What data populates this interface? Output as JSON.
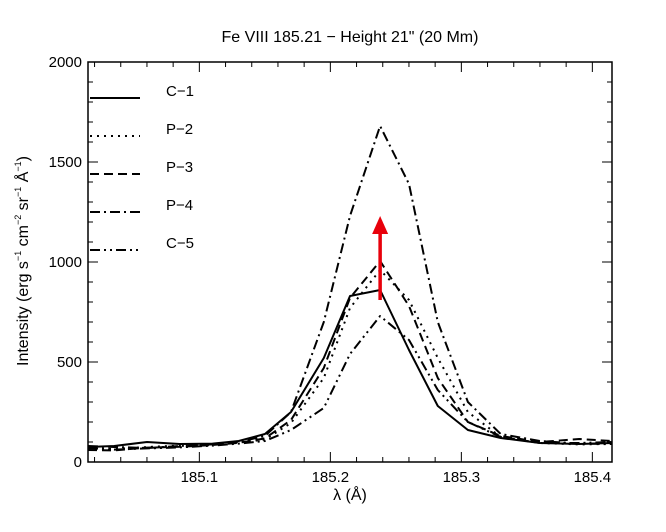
{
  "chart_data": {
    "type": "line",
    "title": "Fe VIII 185.21 − Height 21\" (20 Mm)",
    "xlabel": "λ (Å)",
    "ylabel_parts": {
      "prefix": "Intensity (erg s",
      "exp1": "−1",
      "mid1": " cm",
      "exp2": "−2",
      "mid2": " sr",
      "exp3": "−1",
      "mid3": " Å",
      "exp4": "−1",
      "suffix": ")"
    },
    "xlim": [
      185.015,
      185.415
    ],
    "ylim": [
      0,
      2000
    ],
    "xticks": [
      185.1,
      185.2,
      185.3,
      185.4
    ],
    "xtick_labels": [
      "185.1",
      "185.2",
      "185.3",
      "185.4"
    ],
    "yticks": [
      0,
      500,
      1000,
      1500,
      2000
    ],
    "ytick_labels": [
      "0",
      "500",
      "1000",
      "1500",
      "2000"
    ],
    "series": [
      {
        "name": "C−1",
        "dash": "solid",
        "x": [
          185.015,
          185.035,
          185.06,
          185.085,
          185.11,
          185.13,
          185.15,
          185.17,
          185.195,
          185.215,
          185.238,
          185.26,
          185.282,
          185.305,
          185.33,
          185.36,
          185.39,
          185.415
        ],
        "y": [
          75,
          80,
          100,
          90,
          92,
          105,
          140,
          250,
          520,
          830,
          860,
          560,
          280,
          160,
          120,
          95,
          90,
          95
        ]
      },
      {
        "name": "P−2",
        "dash": "dotted",
        "x": [
          185.015,
          185.035,
          185.06,
          185.085,
          185.11,
          185.13,
          185.15,
          185.17,
          185.195,
          185.215,
          185.238,
          185.26,
          185.282,
          185.305,
          185.33,
          185.36,
          185.39,
          185.415
        ],
        "y": [
          70,
          65,
          75,
          82,
          88,
          98,
          112,
          195,
          420,
          770,
          960,
          810,
          520,
          250,
          125,
          95,
          88,
          90
        ]
      },
      {
        "name": "P−3",
        "dash": "dashed",
        "x": [
          185.015,
          185.035,
          185.06,
          185.085,
          185.11,
          185.13,
          185.15,
          185.17,
          185.195,
          185.215,
          185.238,
          185.26,
          185.282,
          185.305,
          185.33,
          185.36,
          185.39,
          185.415
        ],
        "y": [
          60,
          58,
          72,
          76,
          85,
          96,
          118,
          210,
          470,
          820,
          1005,
          780,
          420,
          200,
          130,
          100,
          115,
          105
        ]
      },
      {
        "name": "P−4",
        "dash": "dashdot",
        "x": [
          185.015,
          185.035,
          185.06,
          185.085,
          185.11,
          185.13,
          185.15,
          185.17,
          185.195,
          185.215,
          185.238,
          185.26,
          185.282,
          185.305,
          185.33,
          185.36,
          185.39,
          185.415
        ],
        "y": [
          80,
          75,
          70,
          80,
          88,
          100,
          130,
          250,
          700,
          1230,
          1680,
          1390,
          700,
          300,
          140,
          105,
          92,
          90
        ]
      },
      {
        "name": "C−5",
        "dash": "dashdotdot",
        "x": [
          185.015,
          185.035,
          185.06,
          185.085,
          185.11,
          185.13,
          185.15,
          185.17,
          185.195,
          185.215,
          185.238,
          185.26,
          185.282,
          185.305,
          185.33,
          185.36,
          185.39,
          185.415
        ],
        "y": [
          70,
          62,
          68,
          73,
          82,
          92,
          105,
          160,
          270,
          540,
          730,
          610,
          360,
          200,
          125,
          95,
          95,
          100
        ]
      }
    ],
    "annotation": {
      "type": "arrow",
      "color": "#e8000b",
      "x": 185.238,
      "y_start": 810,
      "y_end": 1230
    }
  }
}
